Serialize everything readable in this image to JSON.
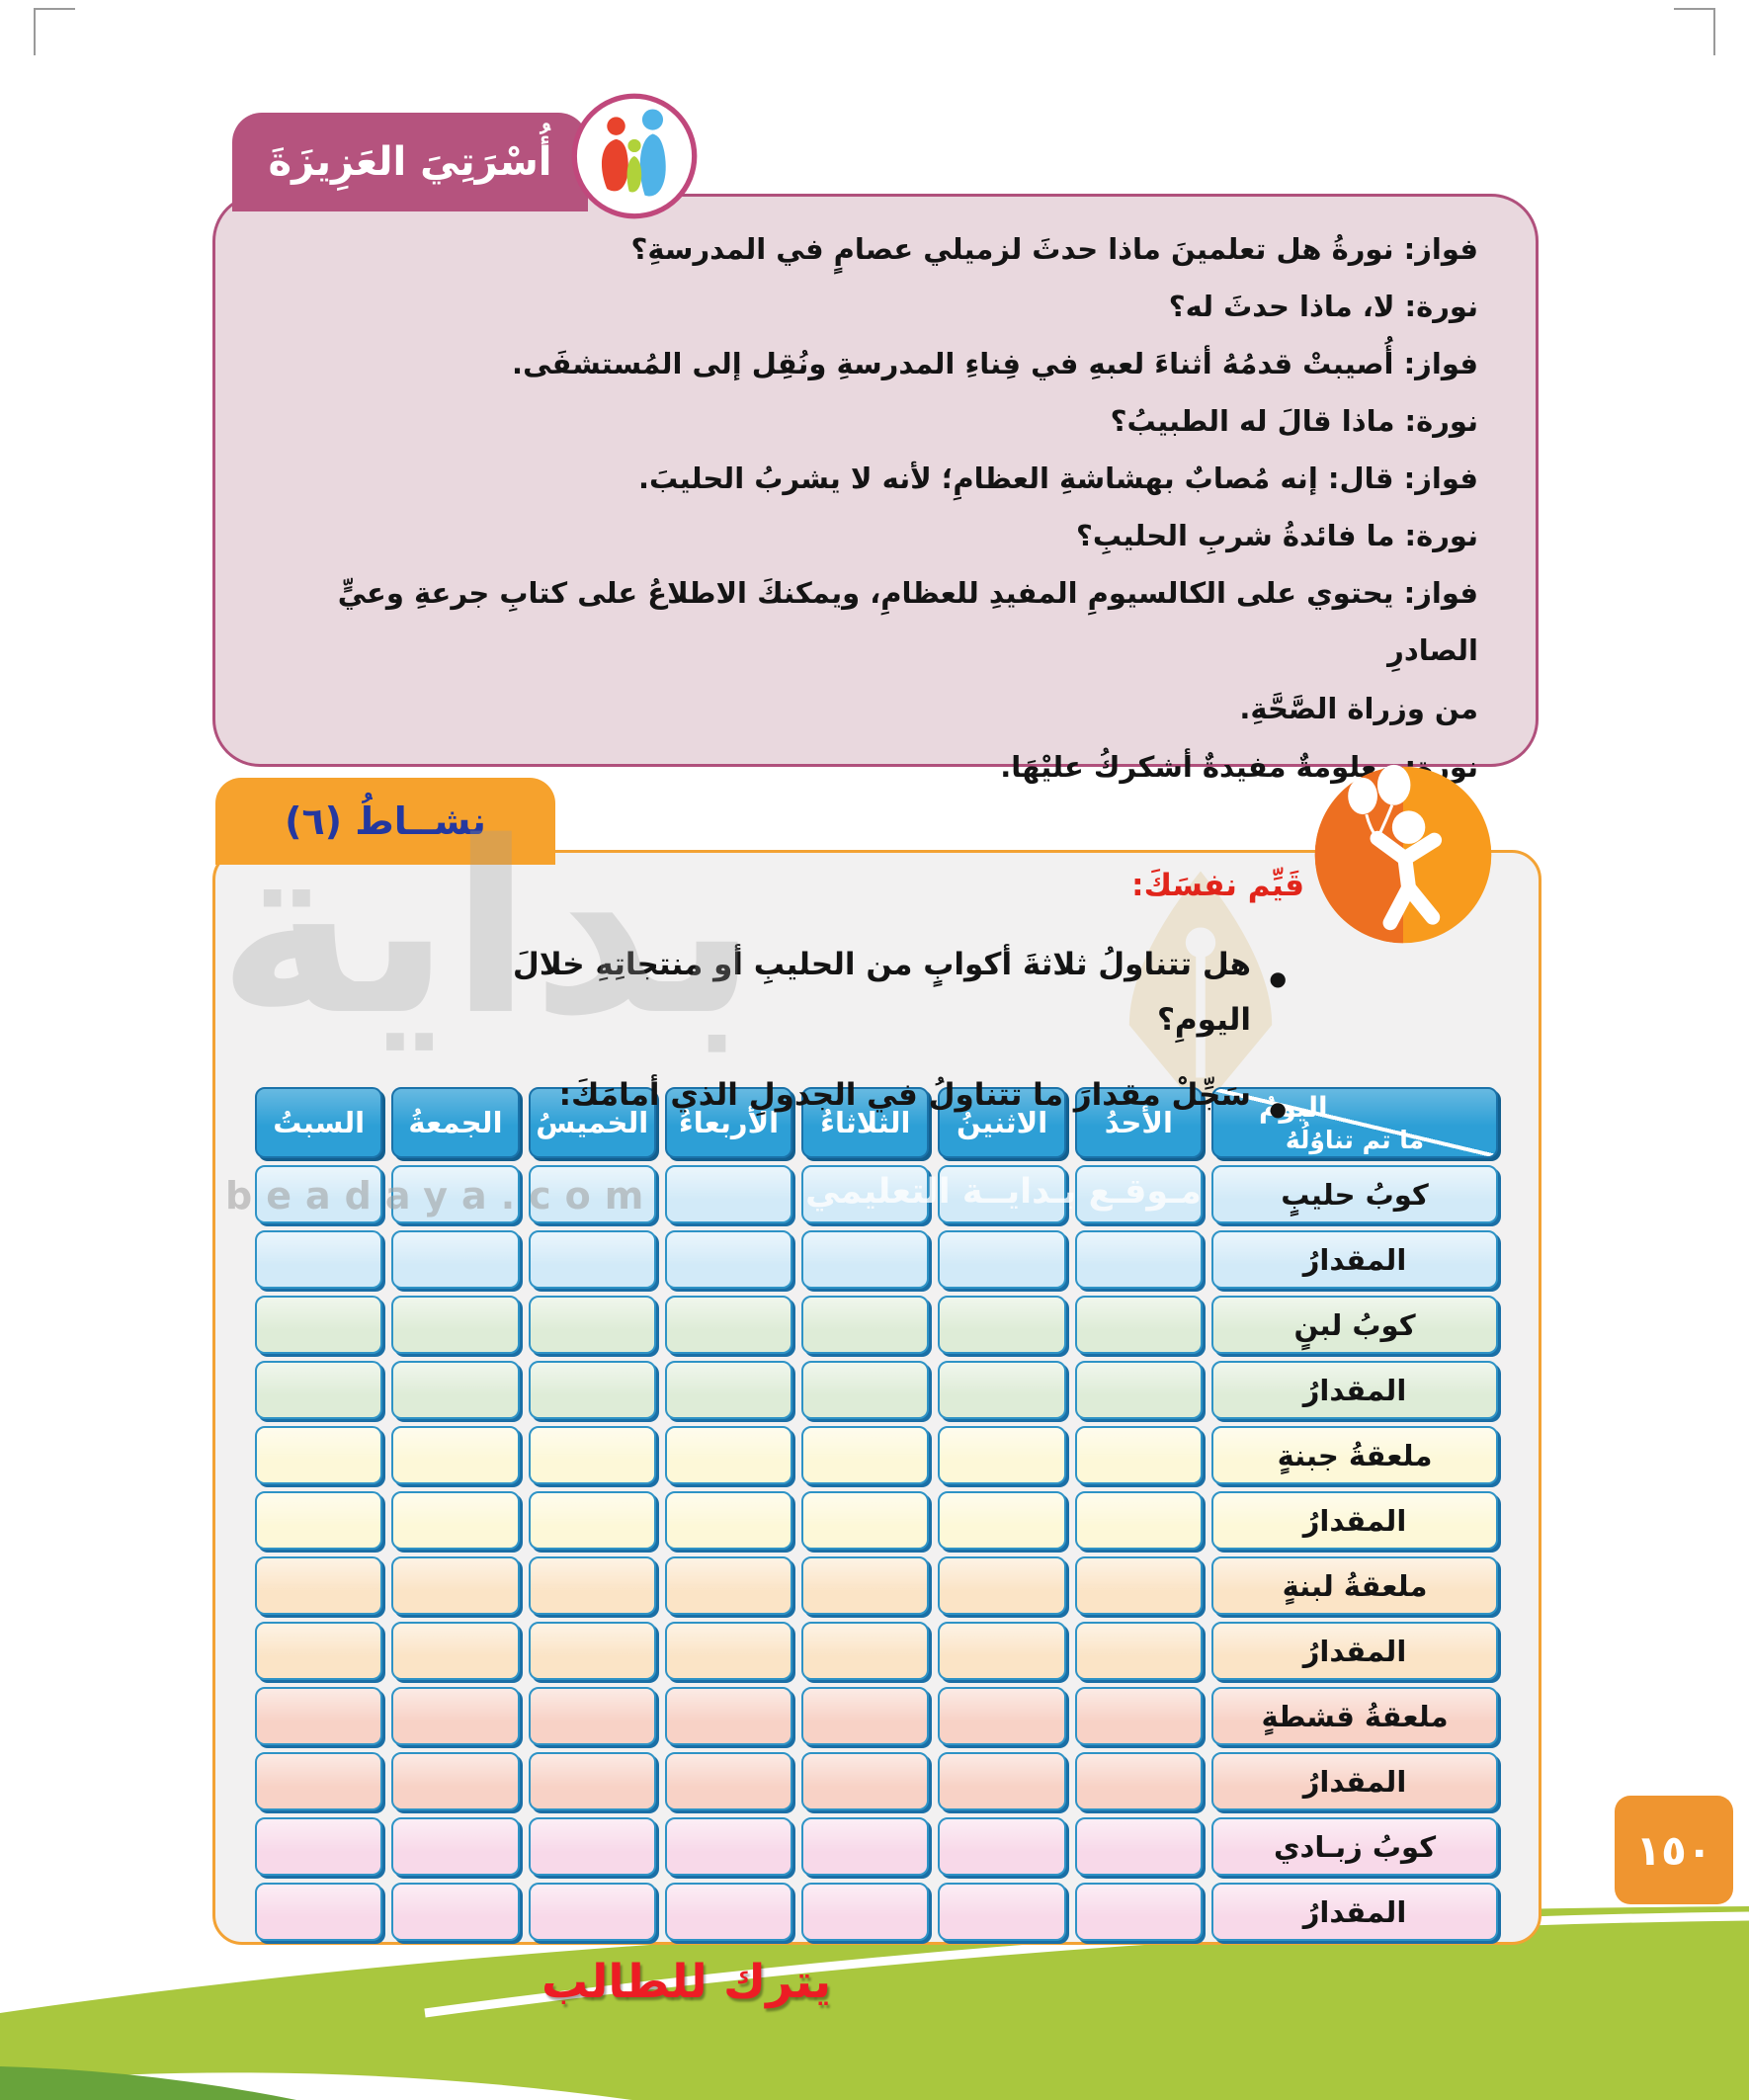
{
  "page": {
    "number": "١٥٠",
    "student_note": "يترك للطالب"
  },
  "family_section": {
    "tab_label": "أُسْرَتِيَ العَزِيزَةَ",
    "dialogue": [
      "فواز: نورةُ هل تعلمينَ ماذا حدثَ لزميلي عصامٍ في المدرسةِ؟",
      "نورة: لا، ماذا حدثَ له؟",
      "فواز: أُصيبتْ قدمُهُ أثناءَ لعبهِ في فِناءِ المدرسةِ ونُقِل إلى المُستشفَى.",
      "نورة: ماذا قالَ له الطبيبُ؟",
      "فواز: قال: إنه مُصابٌ بهشاشةِ العظامِ؛ لأنه لا يشربُ الحليبَ.",
      "نورة: ما فائدةُ شربِ الحليبِ؟",
      "فواز: يحتوي على الكالسيومِ المفيدِ للعظامِ، ويمكنكَ الاطلاعُ على كتابِ جرعةِ وعيٍّ الصادرِ",
      "من وزراة الصَّحَّةِ.",
      "نورة: معلومةٌ مفيدةٌ أشكركُ عليْهَا."
    ]
  },
  "activity_section": {
    "tab_label": "نشــاطُ (٦)",
    "heading": "قَيِّم نفسَكَ:",
    "bullets": [
      "هل تتناولُ ثلاثةَ أكوابٍ من الحليبِ أو منتجاتِهِ خلالَ اليومِ؟",
      "سَجِّلْ مقدارَ ما تتناولُ في الجدولِ الذي أمامَكَ:"
    ]
  },
  "table": {
    "corner": {
      "day": "اليومُ",
      "consumed": "ما تم تناوُلُهُ"
    },
    "days": [
      "الأحدُ",
      "الاثنينُ",
      "الثلاثاءُ",
      "الأربعاءُ",
      "الخميسُ",
      "الجمعةُ",
      "السبتُ"
    ],
    "rows": [
      {
        "label": "كوبُ حليبٍ",
        "color": "#d2eaf8"
      },
      {
        "label": "المقدارُ",
        "color": "#d2eaf8"
      },
      {
        "label": "كوبُ لبنٍ",
        "color": "#deecd7"
      },
      {
        "label": "المقدارُ",
        "color": "#deecd7"
      },
      {
        "label": "ملعقةُ جبنةٍ",
        "color": "#fdf8d8"
      },
      {
        "label": "المقدارُ",
        "color": "#fdf8d8"
      },
      {
        "label": "ملعقةُ لبنةٍ",
        "color": "#fbe4c6"
      },
      {
        "label": "المقدارُ",
        "color": "#fbe4c6"
      },
      {
        "label": "ملعقةُ قشطةٍ",
        "color": "#f8d2c6"
      },
      {
        "label": "المقدارُ",
        "color": "#f8d2c6"
      },
      {
        "label": "كوبُ زبـادي",
        "color": "#f8d9e9"
      },
      {
        "label": "المقدارُ",
        "color": "#f8d9e9"
      }
    ]
  },
  "watermark": {
    "brand": "بداية",
    "domain": "beadaya.com",
    "site": "مـوقـع بـدايــة التعليمي"
  },
  "colors": {
    "family_pink": "#b5537e",
    "dialogue_bg": "#e9d8de",
    "activity_orange": "#f6a22d",
    "header_blue": "#2d9fd6",
    "footer_lime": "#a9c73e",
    "note_red": "#ec1c24",
    "tab_orange": "#ef9530"
  }
}
